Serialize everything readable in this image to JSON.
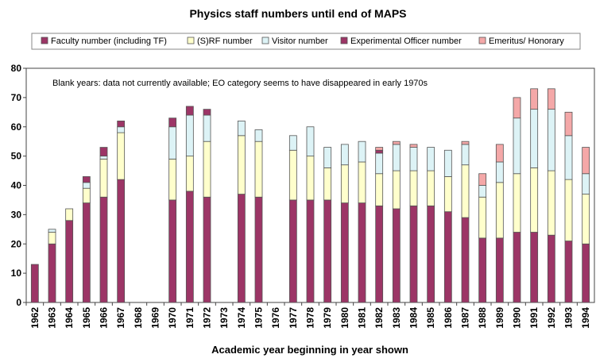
{
  "chart_data": {
    "type": "bar",
    "stacked": true,
    "title": "Physics staff numbers until end of MAPS",
    "xlabel": "Academic year beginning in year shown",
    "ylabel": "",
    "ylim": [
      0,
      80
    ],
    "yticks": [
      0,
      10,
      20,
      30,
      40,
      50,
      60,
      70,
      80
    ],
    "grid": false,
    "legend_position": "top",
    "annotation": "Blank years: data not currently available;  EO category seems to have disappeared in early 1970s",
    "categories": [
      "1962",
      "1963",
      "1964",
      "1965",
      "1966",
      "1967",
      "1968",
      "1969",
      "1970",
      "1971",
      "1972",
      "1973",
      "1974",
      "1975",
      "1976",
      "1977",
      "1978",
      "1979",
      "1980",
      "1981",
      "1982",
      "1983",
      "1984",
      "1985",
      "1986",
      "1987",
      "1988",
      "1989",
      "1990",
      "1991",
      "1992",
      "1993",
      "1994"
    ],
    "series": [
      {
        "name": "Faculty number (including TF)",
        "color": "#9c3566",
        "values": [
          13,
          20,
          28,
          34,
          36,
          42,
          null,
          null,
          35,
          38,
          36,
          null,
          37,
          36,
          null,
          35,
          35,
          35,
          34,
          34,
          33,
          32,
          33,
          33,
          31,
          29,
          22,
          22,
          24,
          24,
          23,
          21,
          20
        ]
      },
      {
        "name": "(S)RF number",
        "color": "#ffffcc",
        "values": [
          0,
          4,
          4,
          5,
          13,
          16,
          null,
          null,
          14,
          12,
          19,
          null,
          20,
          19,
          null,
          17,
          15,
          11,
          13,
          14,
          11,
          13,
          12,
          12,
          12,
          18,
          14,
          19,
          20,
          22,
          22,
          21,
          17
        ]
      },
      {
        "name": "Visitor number",
        "color": "#ddf3f6",
        "values": [
          0,
          1,
          0,
          2,
          1,
          2,
          null,
          null,
          11,
          14,
          9,
          null,
          5,
          4,
          null,
          5,
          10,
          7,
          7,
          7,
          7,
          9,
          8,
          8,
          9,
          7,
          4,
          7,
          19,
          20,
          21,
          15,
          7
        ]
      },
      {
        "name": "Experimental Officer number",
        "color": "#9c3566",
        "values": [
          0,
          0,
          0,
          2,
          3,
          2,
          null,
          null,
          3,
          3,
          2,
          null,
          0,
          0,
          null,
          0,
          0,
          0,
          0,
          0,
          1,
          0,
          0,
          0,
          0,
          0,
          0,
          0,
          0,
          0,
          0,
          0,
          0
        ]
      },
      {
        "name": "Emeritus/ Honorary",
        "color": "#f4a8a8",
        "values": [
          0,
          0,
          0,
          0,
          0,
          0,
          null,
          null,
          0,
          0,
          0,
          null,
          0,
          0,
          null,
          0,
          0,
          0,
          0,
          0,
          1,
          1,
          1,
          0,
          0,
          1,
          4,
          6,
          7,
          7,
          7,
          8,
          9
        ]
      }
    ]
  }
}
